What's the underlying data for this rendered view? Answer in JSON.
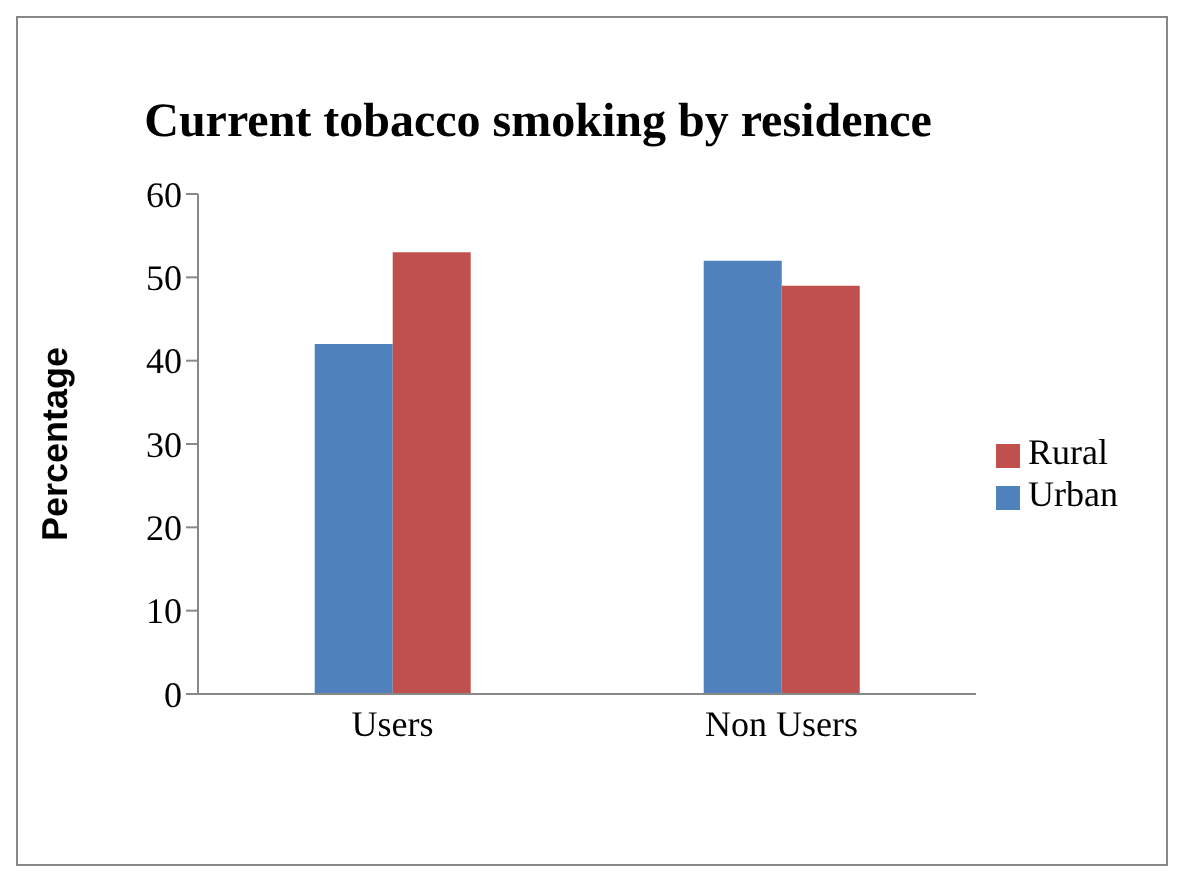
{
  "chart_data": {
    "type": "bar",
    "title": "Current tobacco smoking by residence",
    "ylabel": "Percentage",
    "categories": [
      "Users",
      "Non Users"
    ],
    "series": [
      {
        "name": "Urban",
        "color": "#4f81bd",
        "values": [
          42,
          52
        ]
      },
      {
        "name": "Rural",
        "color": "#c0504d",
        "values": [
          53,
          49
        ]
      }
    ],
    "ylim": [
      0,
      60
    ],
    "yticks": [
      0,
      10,
      20,
      30,
      40,
      50,
      60
    ],
    "legend": "right",
    "grid": false
  }
}
